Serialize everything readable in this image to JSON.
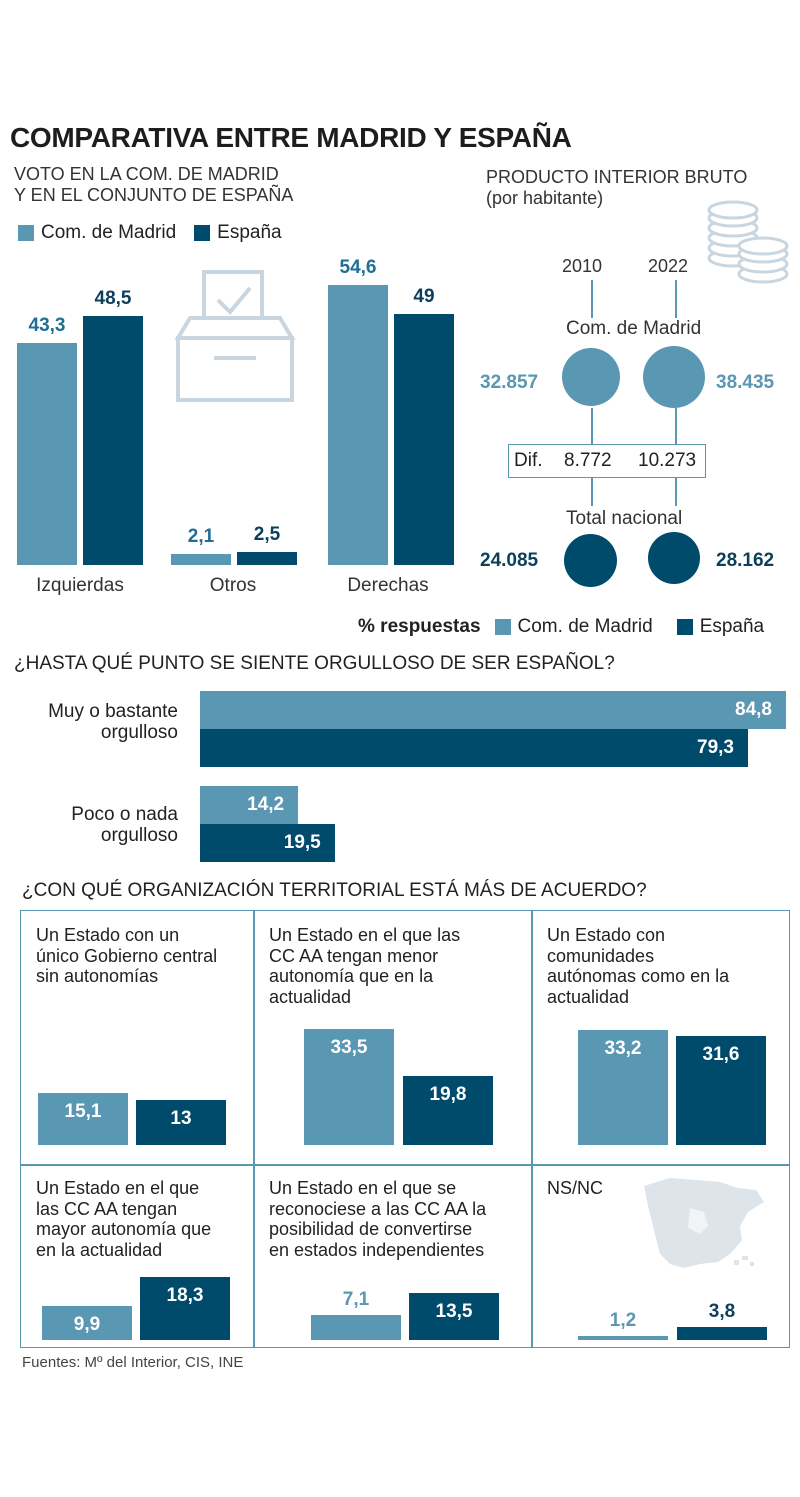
{
  "title": "COMPARATIVA ENTRE MADRID Y ESPAÑA",
  "colors": {
    "madrid": "#5a97b3",
    "espana": "#004a6b",
    "icon": "#c9d6df"
  },
  "vote": {
    "subtitle_line1": "VOTO EN LA COM. DE MADRID",
    "subtitle_line2": "Y EN EL CONJUNTO DE ESPAÑA",
    "legend_madrid": "Com. de Madrid",
    "legend_espana": "España",
    "icon": "ballot-box-icon"
  },
  "pib": {
    "title_line1": "PRODUCTO INTERIOR BRUTO",
    "title_line2": "(por habitante)",
    "year1": "2010",
    "year2": "2022",
    "madrid_label": "Com. de Madrid",
    "madrid_2010": "32.857",
    "madrid_2022": "38.435",
    "dif_label": "Dif.",
    "dif_2010": "8.772",
    "dif_2022": "10.273",
    "nacional_label": "Total nacional",
    "nacional_2010": "24.085",
    "nacional_2022": "28.162",
    "icon": "coins-icon"
  },
  "pride": {
    "legend_title": "% respuestas",
    "legend_madrid": "Com. de Madrid",
    "legend_espana": "España",
    "question": "¿HASTA QUÉ PUNTO SE SIENTE ORGULLOSO DE SER ESPAÑOL?",
    "row1_line1": "Muy o bastante",
    "row1_line2": "orgulloso",
    "row2_line1": "Poco o nada",
    "row2_line2": "orgulloso"
  },
  "org": {
    "question": "¿CON QUÉ ORGANIZACIÓN TERRITORIAL ESTÁ MÁS DE ACUERDO?",
    "cells": [
      {
        "text": [
          "Un Estado con un",
          "único Gobierno central",
          "sin autonomías"
        ]
      },
      {
        "text": [
          "Un Estado en el que las",
          "CC AA tengan menor",
          "autonomía que en la",
          "actualidad"
        ]
      },
      {
        "text": [
          "Un Estado con",
          "comunidades",
          "autónomas como en la",
          "actualidad"
        ]
      },
      {
        "text": [
          "Un Estado en el que",
          "las CC AA tengan",
          "mayor autonomía que",
          "en la actualidad"
        ]
      },
      {
        "text": [
          "Un Estado en el que se",
          "reconociese a las CC AA la",
          "posibilidad de convertirse",
          "en estados independientes"
        ]
      },
      {
        "text": [
          "NS/NC"
        ]
      }
    ],
    "map_icon": "spain-map-icon"
  },
  "source": "Fuentes: Mº del Interior, CIS, INE",
  "chart_data": [
    {
      "type": "bar",
      "categories": [
        "Izquierdas",
        "Otros",
        "Derechas"
      ],
      "series": [
        {
          "name": "Com. de Madrid",
          "values": [
            43.3,
            2.1,
            54.6
          ],
          "labels": [
            "43,3",
            "2,1",
            "54,6"
          ]
        },
        {
          "name": "España",
          "values": [
            48.5,
            2.5,
            49.0
          ],
          "labels": [
            "48,5",
            "2,5",
            "49"
          ]
        }
      ],
      "ylim": [
        0,
        60
      ]
    },
    {
      "type": "bar",
      "orientation": "horizontal",
      "categories": [
        "Muy o bastante orgulloso",
        "Poco o nada orgulloso"
      ],
      "series": [
        {
          "name": "Com. de Madrid",
          "values": [
            84.8,
            14.2
          ],
          "labels": [
            "84,8",
            "14,2"
          ]
        },
        {
          "name": "España",
          "values": [
            79.3,
            19.5
          ],
          "labels": [
            "79,3",
            "19,5"
          ]
        }
      ],
      "ylim": [
        0,
        85
      ]
    },
    {
      "type": "bar",
      "categories": [
        "Un Estado con un único Gobierno central sin autonomías",
        "Un Estado en el que las CC AA tengan menor autonomía que en la actualidad",
        "Un Estado con comunidades autónomas como en la actualidad",
        "Un Estado en el que las CC AA tengan mayor autonomía que en la actualidad",
        "Un Estado en el que se reconociese a las CC AA la posibilidad de convertirse en estados independientes",
        "NS/NC"
      ],
      "series": [
        {
          "name": "Com. de Madrid",
          "values": [
            15.1,
            33.5,
            33.2,
            9.9,
            7.1,
            1.2
          ],
          "labels": [
            "15,1",
            "33,5",
            "33,2",
            "9,9",
            "7,1",
            "1,2"
          ]
        },
        {
          "name": "España",
          "values": [
            13.0,
            19.8,
            31.6,
            18.3,
            13.5,
            3.8
          ],
          "labels": [
            "13",
            "19,8",
            "31,6",
            "18,3",
            "13,5",
            "3,8"
          ]
        }
      ],
      "ylim": [
        0,
        35
      ]
    }
  ]
}
